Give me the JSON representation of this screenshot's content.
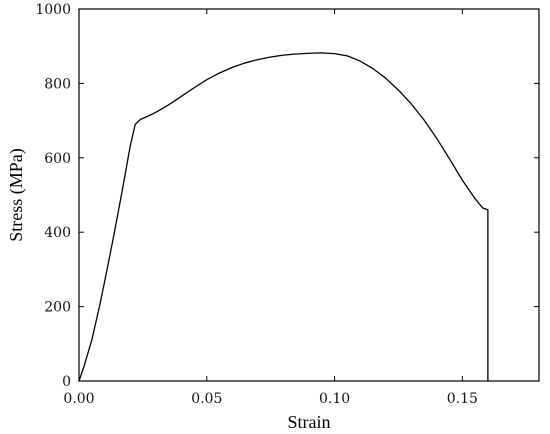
{
  "chart_data": {
    "type": "line",
    "xlabel": "Strain",
    "ylabel": "Stress (MPa)",
    "xlim": [
      0,
      0.18
    ],
    "ylim": [
      0,
      1000
    ],
    "x_ticks": [
      0.0,
      0.05,
      0.1,
      0.15
    ],
    "x_tick_labels": [
      "0.00",
      "0.05",
      "0.10",
      "0.15"
    ],
    "y_ticks": [
      0,
      200,
      400,
      600,
      800,
      1000
    ],
    "y_tick_labels": [
      "0",
      "200",
      "400",
      "600",
      "800",
      "1000"
    ],
    "grid": false,
    "series": [
      {
        "points": [
          [
            0.0,
            0
          ],
          [
            0.002,
            40
          ],
          [
            0.005,
            110
          ],
          [
            0.008,
            200
          ],
          [
            0.011,
            300
          ],
          [
            0.014,
            405
          ],
          [
            0.017,
            515
          ],
          [
            0.02,
            630
          ],
          [
            0.022,
            690
          ],
          [
            0.024,
            703
          ],
          [
            0.027,
            712
          ],
          [
            0.03,
            722
          ],
          [
            0.035,
            742
          ],
          [
            0.04,
            765
          ],
          [
            0.045,
            788
          ],
          [
            0.05,
            810
          ],
          [
            0.055,
            828
          ],
          [
            0.06,
            843
          ],
          [
            0.065,
            855
          ],
          [
            0.07,
            864
          ],
          [
            0.075,
            871
          ],
          [
            0.08,
            876
          ],
          [
            0.085,
            879
          ],
          [
            0.09,
            881
          ],
          [
            0.095,
            882
          ],
          [
            0.1,
            880
          ],
          [
            0.105,
            874
          ],
          [
            0.11,
            860
          ],
          [
            0.115,
            840
          ],
          [
            0.12,
            814
          ],
          [
            0.125,
            782
          ],
          [
            0.13,
            745
          ],
          [
            0.135,
            702
          ],
          [
            0.14,
            652
          ],
          [
            0.145,
            597
          ],
          [
            0.15,
            540
          ],
          [
            0.155,
            490
          ],
          [
            0.158,
            465
          ],
          [
            0.16,
            460
          ],
          [
            0.16,
            0
          ]
        ]
      }
    ]
  }
}
